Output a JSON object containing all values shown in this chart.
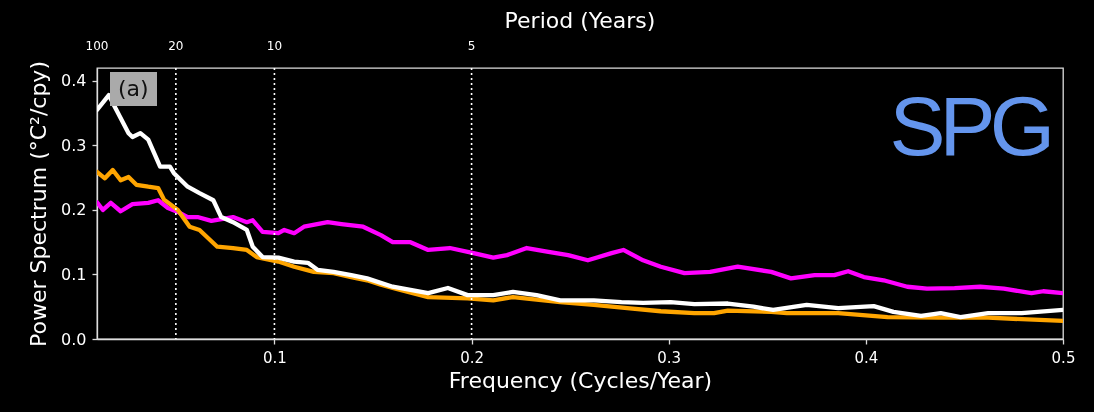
{
  "chart_data": {
    "type": "line",
    "xlabel": "Frequency (Cycles/Year)",
    "ylabel": "Power Spectrum (°C²/cpy)",
    "xlim": [
      0.01,
      0.5
    ],
    "xticks": [
      0.1,
      0.2,
      0.3,
      0.4,
      0.5
    ],
    "ylim": [
      0,
      0.42
    ],
    "yticks": [
      {
        "value": 0,
        "label": "0.0"
      },
      0.1,
      0.2,
      0.3,
      0.4
    ],
    "grid": false,
    "ref_lines": [
      {
        "axis": "x",
        "value": 0.05,
        "color": "#ffffff",
        "line_style": "dotted"
      },
      {
        "axis": "x",
        "value": 0.1,
        "color": "#ffffff",
        "line_style": "dotted"
      },
      {
        "axis": "x",
        "value": 0.2,
        "color": "#ffffff",
        "line_style": "dotted"
      }
    ],
    "annotations": [
      "(a)",
      "SPG",
      "Period (Years)",
      "100",
      "20",
      "10",
      "5"
    ],
    "series": [
      {
        "color": "#ff00ff",
        "x": [
          0.01,
          0.013,
          0.017,
          0.022,
          0.028,
          0.036,
          0.041,
          0.046,
          0.051,
          0.056,
          0.061,
          0.068,
          0.079,
          0.086,
          0.089,
          0.094,
          0.102,
          0.105,
          0.11,
          0.115,
          0.127,
          0.134,
          0.145,
          0.154,
          0.16,
          0.169,
          0.178,
          0.189,
          0.201,
          0.211,
          0.218,
          0.228,
          0.239,
          0.249,
          0.259,
          0.271,
          0.277,
          0.287,
          0.296,
          0.308,
          0.321,
          0.335,
          0.352,
          0.362,
          0.374,
          0.384,
          0.391,
          0.399,
          0.409,
          0.421,
          0.431,
          0.445,
          0.458,
          0.47,
          0.484,
          0.49,
          0.5
        ],
        "values": [
          0.212,
          0.2,
          0.211,
          0.198,
          0.209,
          0.211,
          0.215,
          0.203,
          0.197,
          0.189,
          0.189,
          0.183,
          0.189,
          0.181,
          0.184,
          0.166,
          0.164,
          0.169,
          0.164,
          0.174,
          0.181,
          0.178,
          0.174,
          0.161,
          0.15,
          0.15,
          0.138,
          0.141,
          0.133,
          0.126,
          0.13,
          0.141,
          0.135,
          0.13,
          0.122,
          0.133,
          0.138,
          0.122,
          0.112,
          0.102,
          0.104,
          0.112,
          0.104,
          0.094,
          0.099,
          0.099,
          0.105,
          0.096,
          0.091,
          0.081,
          0.078,
          0.079,
          0.081,
          0.078,
          0.071,
          0.074,
          0.071
        ]
      },
      {
        "color": "#ffa500",
        "x": [
          0.01,
          0.014,
          0.018,
          0.022,
          0.026,
          0.03,
          0.036,
          0.041,
          0.044,
          0.051,
          0.057,
          0.062,
          0.071,
          0.079,
          0.086,
          0.091,
          0.102,
          0.11,
          0.12,
          0.13,
          0.139,
          0.147,
          0.154,
          0.16,
          0.178,
          0.198,
          0.211,
          0.221,
          0.245,
          0.262,
          0.279,
          0.296,
          0.313,
          0.323,
          0.33,
          0.352,
          0.36,
          0.386,
          0.411,
          0.437,
          0.462,
          0.5
        ],
        "values": [
          0.259,
          0.249,
          0.262,
          0.246,
          0.251,
          0.239,
          0.236,
          0.234,
          0.216,
          0.2,
          0.174,
          0.169,
          0.143,
          0.141,
          0.138,
          0.127,
          0.12,
          0.112,
          0.104,
          0.102,
          0.096,
          0.091,
          0.084,
          0.079,
          0.065,
          0.063,
          0.06,
          0.065,
          0.057,
          0.053,
          0.048,
          0.043,
          0.04,
          0.04,
          0.044,
          0.042,
          0.04,
          0.04,
          0.034,
          0.033,
          0.033,
          0.028
        ]
      },
      {
        "color": "#ffffff",
        "x": [
          0.01,
          0.016,
          0.019,
          0.026,
          0.028,
          0.032,
          0.036,
          0.042,
          0.047,
          0.049,
          0.056,
          0.062,
          0.069,
          0.073,
          0.079,
          0.086,
          0.089,
          0.094,
          0.102,
          0.11,
          0.117,
          0.122,
          0.13,
          0.139,
          0.147,
          0.16,
          0.169,
          0.178,
          0.188,
          0.198,
          0.211,
          0.221,
          0.233,
          0.245,
          0.262,
          0.276,
          0.287,
          0.301,
          0.313,
          0.33,
          0.343,
          0.353,
          0.37,
          0.386,
          0.404,
          0.414,
          0.428,
          0.438,
          0.448,
          0.462,
          0.479,
          0.5
        ],
        "values": [
          0.355,
          0.378,
          0.36,
          0.319,
          0.313,
          0.319,
          0.309,
          0.267,
          0.267,
          0.257,
          0.236,
          0.226,
          0.215,
          0.189,
          0.181,
          0.169,
          0.143,
          0.127,
          0.126,
          0.12,
          0.118,
          0.107,
          0.104,
          0.099,
          0.094,
          0.081,
          0.076,
          0.071,
          0.079,
          0.068,
          0.068,
          0.073,
          0.068,
          0.06,
          0.06,
          0.057,
          0.056,
          0.057,
          0.054,
          0.055,
          0.05,
          0.045,
          0.053,
          0.048,
          0.051,
          0.042,
          0.036,
          0.04,
          0.034,
          0.04,
          0.04,
          0.045
        ]
      }
    ]
  }
}
